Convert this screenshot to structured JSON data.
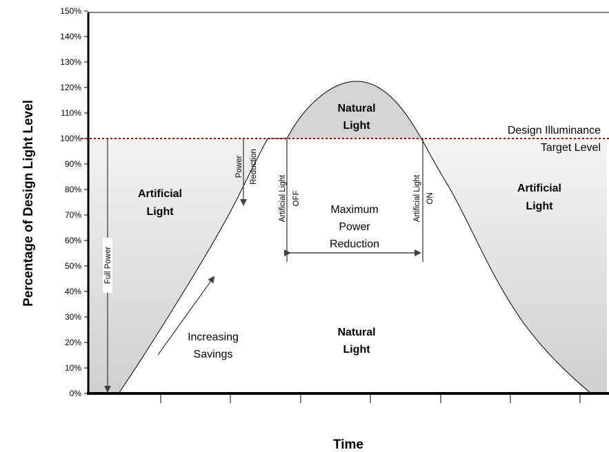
{
  "chart": {
    "y_axis_title": "Percentage of Design Light Level",
    "x_axis_title": "Time",
    "y_ticks": [
      "0%",
      "10%",
      "20%",
      "30%",
      "40%",
      "50%",
      "60%",
      "70%",
      "80%",
      "90%",
      "100%",
      "110%",
      "120%",
      "130%",
      "140%",
      "150%"
    ],
    "design_line_label_1": "Design Illuminance",
    "design_line_label_2": "Target Level",
    "artificial_left_1": "Artificial",
    "artificial_left_2": "Light",
    "artificial_right_1": "Artificial",
    "artificial_right_2": "Light",
    "natural_top_1": "Natural",
    "natural_top_2": "Light",
    "natural_bottom_1": "Natural",
    "natural_bottom_2": "Light",
    "max_power_1": "Maximum",
    "max_power_2": "Power",
    "max_power_3": "Reduction",
    "increasing_1": "Increasing",
    "increasing_2": "Savings",
    "power_reduction_1": "Power",
    "power_reduction_2": "Reduction",
    "full_power": "Full Power",
    "art_off_1": "Artificial Light",
    "art_off_2": "OFF",
    "art_on_1": "Artificial Light",
    "art_on_2": "ON"
  },
  "colors": {
    "design_line": "#c00000",
    "shade": "#d4d4d4",
    "axis": "#000000",
    "arrow": "#404040"
  }
}
